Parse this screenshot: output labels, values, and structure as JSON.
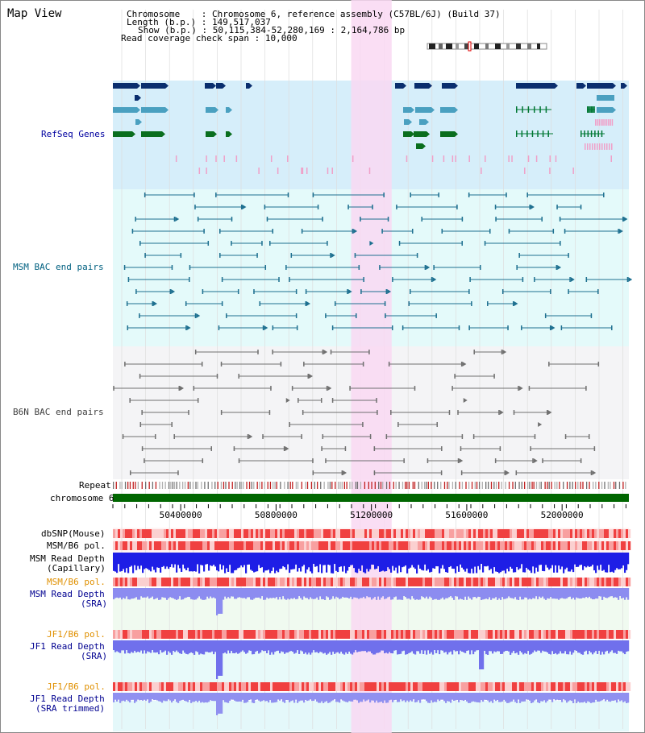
{
  "page": {
    "title": "Map View"
  },
  "info": {
    "chromosome_label": "Chromosome",
    "chromosome_value": "Chromosome 6, reference assembly (C57BL/6J) (Build 37)",
    "length_label": "Length (b.p.)",
    "length_value": "149,517,037",
    "show_label": "Show (b.p.)",
    "show_value": "50,115,384-52,280,169 : 2,164,786 bp",
    "coverage_label": "Read coverage check span",
    "coverage_value": "10,000"
  },
  "tracks": {
    "refseq": "RefSeq Genes",
    "msm_bac": "MSM BAC end pairs",
    "b6n_bac": "B6N BAC end pairs",
    "repeat": "Repeat",
    "chromosome": "chromosome 6",
    "dbsnp": "dbSNP(Mouse)",
    "msm_b6_pol_1": "MSM/B6 pol.",
    "msm_read_depth_cap_1": "MSM Read Depth",
    "msm_read_depth_cap_2": "(Capillary)",
    "msm_b6_pol_2": "MSM/B6 pol.",
    "msm_read_depth_sra_1": "MSM Read Depth",
    "msm_read_depth_sra_2": "(SRA)",
    "jf1_b6_pol": "JF1/B6 pol.",
    "jf1_read_depth_sra_1": "JF1 Read Depth",
    "jf1_read_depth_sra_2": "(SRA)",
    "jf1_b6_pol_2": "JF1/B6 pol.",
    "jf1_read_depth_trim_1": "JF1 Read Depth",
    "jf1_read_depth_trim_2": "(SRA trimmed)"
  },
  "axis": {
    "ticks": [
      "50400000",
      "50800000",
      "51200000",
      "51600000",
      "52000000"
    ],
    "tick_values": [
      50400000,
      50800000,
      51200000,
      51600000,
      52000000
    ],
    "range": [
      50115384,
      52280169
    ]
  },
  "highlight": {
    "start": 51115000,
    "end": 51285000
  },
  "colors": {
    "refseq_bg": "#d6eefa",
    "msm_bg": "#e4fafa",
    "b6n_bg": "#f4f4f6",
    "highlight": "#f9d8f2",
    "chromosome_bar": "#006600",
    "depth_blue": "#1e1ee6",
    "depth_light": "#7878f0",
    "pol_red": "#f04040",
    "pol_light": "#f8a0a0",
    "msm_label": "#006080",
    "refseq_label": "#0000a0",
    "orange_label": "#e09000",
    "navy_label": "#000090"
  }
}
